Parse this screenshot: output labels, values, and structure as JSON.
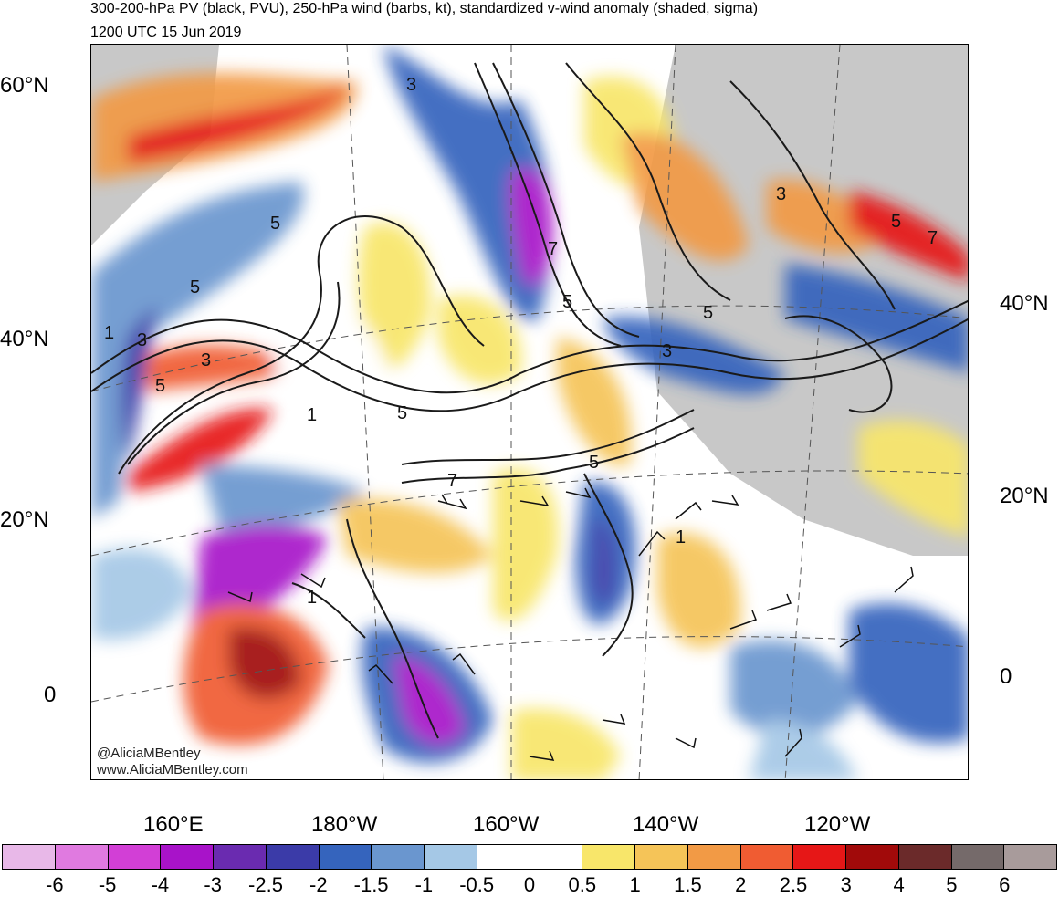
{
  "titles": {
    "line1": "300-200-hPa PV (black, PVU), 250-hPa wind (barbs, kt), standardized v-wind anomaly (shaded, sigma)",
    "line2": "1200 UTC 15 Jun 2019"
  },
  "lat_labels_left": [
    "60°N",
    "40°N",
    "20°N",
    "0"
  ],
  "lat_labels_right": [
    "40°N",
    "20°N",
    "0"
  ],
  "lon_labels": [
    "160°E",
    "180°W",
    "160°W",
    "140°W",
    "120°W"
  ],
  "watermark": {
    "handle": "@AliciaMBentley",
    "site": "www.AliciaMBentley.com"
  },
  "contour_labels": [
    "3",
    "5",
    "3",
    "3",
    "5",
    "1",
    "5",
    "7",
    "5",
    "5",
    "3",
    "5",
    "1",
    "3",
    "5",
    "7",
    "1",
    "1",
    "5",
    "7"
  ],
  "colorbar": {
    "labels": [
      "-6",
      "-5",
      "-4",
      "-3",
      "-2.5",
      "-2",
      "-1.5",
      "-1",
      "-0.5",
      "0",
      "0.5",
      "1",
      "1.5",
      "2",
      "2.5",
      "3",
      "4",
      "5",
      "6"
    ],
    "colors": [
      "#e8b8e8",
      "#e07ae0",
      "#d23fd6",
      "#a813c9",
      "#6a2bb0",
      "#3b3ba8",
      "#3564bd",
      "#6a96cf",
      "#a5c8e6",
      "#ffffff",
      "#ffffff",
      "#f8e66a",
      "#f5c458",
      "#f29a45",
      "#f05c32",
      "#e61717",
      "#a10a0a",
      "#6b2a2a",
      "#756a6a",
      "#a89b9b"
    ]
  }
}
